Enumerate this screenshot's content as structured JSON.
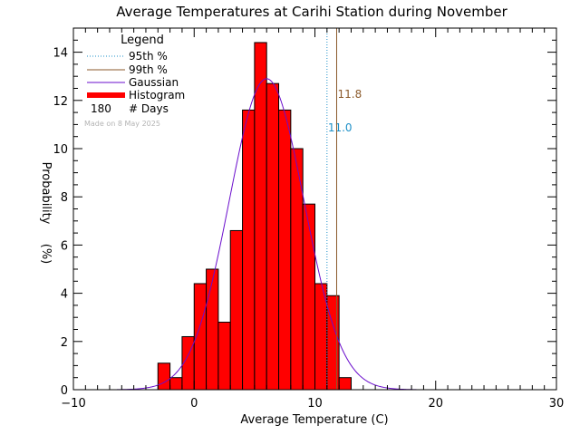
{
  "chart_data": {
    "type": "bar",
    "title": "Average Temperatures at Carihi Station during November",
    "xlabel": "Average Temperature (C)",
    "ylabel_top": "Probability",
    "ylabel_bottom": "(%)",
    "xlim": [
      -10,
      30
    ],
    "ylim": [
      0,
      15
    ],
    "xticks": [
      -10,
      0,
      10,
      20,
      30
    ],
    "xtick_labels": [
      "−10",
      "0",
      "10",
      "20",
      "30"
    ],
    "yticks": [
      0,
      2,
      4,
      6,
      8,
      10,
      12,
      14
    ],
    "xminor_step": 1,
    "yminor_step": 0.5,
    "histogram": {
      "bin_width": 1,
      "bin_starts": [
        -3,
        -2,
        -1,
        0,
        1,
        2,
        3,
        4,
        5,
        6,
        7,
        8,
        9,
        10,
        11,
        12
      ],
      "values": [
        1.1,
        0.5,
        2.2,
        4.4,
        5.0,
        2.8,
        6.6,
        11.6,
        14.4,
        12.7,
        11.6,
        10.0,
        7.7,
        4.4,
        3.9,
        0.5
      ]
    },
    "gaussian": {
      "mean": 6.0,
      "peak": 12.9,
      "sigma": 3.1
    },
    "percentiles": [
      {
        "label": "95th %",
        "value": 11.0,
        "text": "11.0",
        "color": "#1e90c8",
        "style": "dotted"
      },
      {
        "label": "99th %",
        "value": 11.8,
        "text": "11.8",
        "color": "#8b5a2b",
        "style": "solid"
      }
    ],
    "legend": {
      "title": "Legend",
      "placement": "top-left",
      "entries": [
        "95th %",
        "99th %",
        "Gaussian",
        "Histogram"
      ],
      "days_count": "180",
      "days_label": "# Days",
      "made_on": "Made on 8 May 2025"
    },
    "colors": {
      "histogram": "#ff0000",
      "gaussian": "#6a0dcc",
      "p95": "#1e90c8",
      "p99": "#8b5a2b",
      "made_on": "#b4b4b4"
    }
  }
}
